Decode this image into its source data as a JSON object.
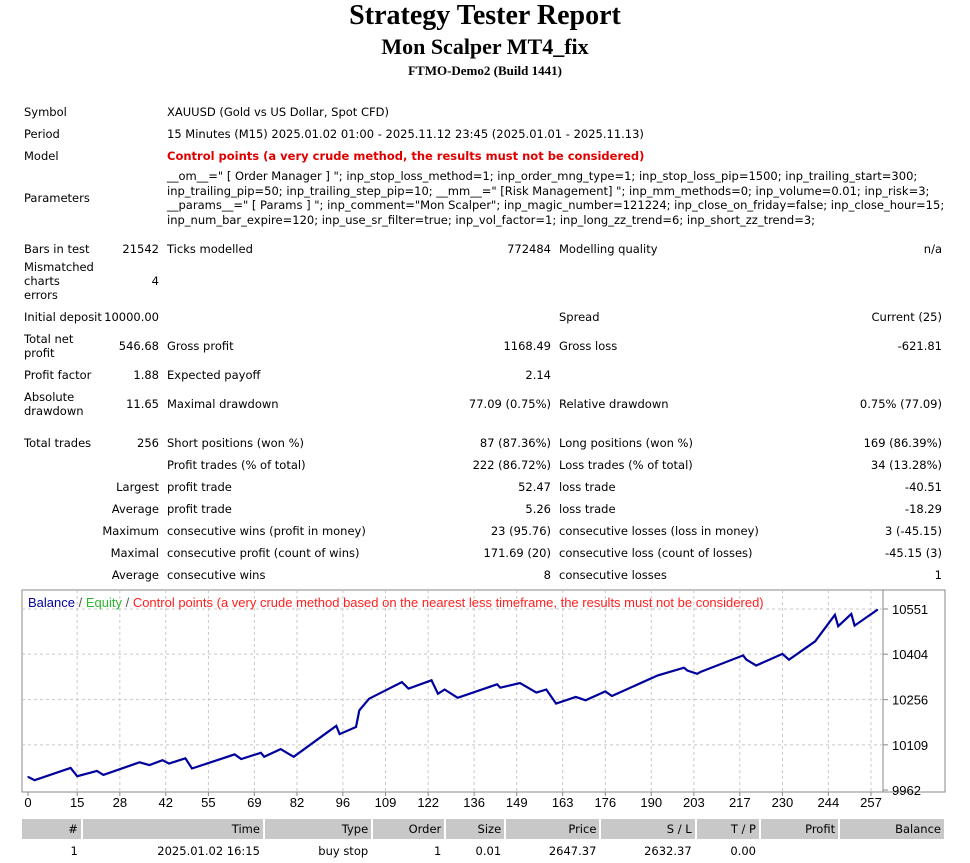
{
  "header": {
    "title": "Strategy Tester Report",
    "expert": "Mon Scalper MT4_fix",
    "server": "FTMO-Demo2 (Build 1441)"
  },
  "info": {
    "symbol_label": "Symbol",
    "symbol": "XAUUSD (Gold vs US Dollar, Spot CFD)",
    "period_label": "Period",
    "period": "15 Minutes (M15) 2025.01.02 01:00 - 2025.11.12 23:45 (2025.01.01 - 2025.11.13)",
    "model_label": "Model",
    "model": "Control points (a very crude method, the results must not be considered)",
    "params_label": "Parameters",
    "params": [
      "__om__=\" [ Order Manager ] \"; inp_stop_loss_method=1; inp_order_mng_type=1; inp_stop_loss_pip=1500; inp_trailing_start=300;",
      "inp_trailing_pip=50; inp_trailing_step_pip=10; __mm__=\" [Risk Management] \"; inp_mm_methods=0; inp_volume=0.01; inp_risk=3;",
      "__params__=\" [ Params ] \"; inp_comment=\"Mon Scalper\"; inp_magic_number=121224; inp_close_on_friday=false; inp_close_hour=15;",
      "inp_num_bar_expire=120; inp_use_sr_filter=true; inp_vol_factor=1; inp_long_zz_trend=6; inp_short_zz_trend=3;"
    ]
  },
  "stats": {
    "bars_label": "Bars in test",
    "bars": "21542",
    "ticks_label": "Ticks modelled",
    "ticks": "772484",
    "quality_label": "Modelling quality",
    "quality": "n/a",
    "mismatch_label": "Mismatched charts errors",
    "mismatch": "4",
    "deposit_label": "Initial deposit",
    "deposit": "10000.00",
    "spread_label": "Spread",
    "spread": "Current (25)",
    "net_label": "Total net profit",
    "net": "546.68",
    "gross_profit_label": "Gross profit",
    "gross_profit": "1168.49",
    "gross_loss_label": "Gross loss",
    "gross_loss": "-621.81",
    "pf_label": "Profit factor",
    "pf": "1.88",
    "payoff_label": "Expected payoff",
    "payoff": "2.14",
    "abs_dd_label": "Absolute drawdown",
    "abs_dd": "11.65",
    "max_dd_label": "Maximal drawdown",
    "max_dd": "77.09 (0.75%)",
    "rel_dd_label": "Relative drawdown",
    "rel_dd": "0.75% (77.09)",
    "trades_label": "Total trades",
    "trades": "256",
    "short_label": "Short positions (won %)",
    "short": "87 (87.36%)",
    "long_label": "Long positions (won %)",
    "long": "169 (86.39%)",
    "profit_trades_label": "Profit trades (% of total)",
    "profit_trades": "222 (86.72%)",
    "loss_trades_label": "Loss trades (% of total)",
    "loss_trades": "34 (13.28%)",
    "largest_label": "Largest",
    "largest_profit_label": "profit trade",
    "largest_profit": "52.47",
    "largest_loss_label": "loss trade",
    "largest_loss": "-40.51",
    "average_label": "Average",
    "avg_profit_label": "profit trade",
    "avg_profit": "5.26",
    "avg_loss_label": "loss trade",
    "avg_loss": "-18.29",
    "maximum_label": "Maximum",
    "max_wins_label": "consecutive wins (profit in money)",
    "max_wins": "23 (95.76)",
    "max_losses_label": "consecutive losses (loss in money)",
    "max_losses": "3 (-45.15)",
    "maximal_label": "Maximal",
    "maximal_profit_label": "consecutive profit (count of wins)",
    "maximal_profit": "171.69 (20)",
    "maximal_loss_label": "consecutive loss (count of losses)",
    "maximal_loss": "-45.15 (3)",
    "average2_label": "Average",
    "avg_wins_label": "consecutive wins",
    "avg_wins": "8",
    "avg_losses_label": "consecutive losses",
    "avg_losses": "1"
  },
  "chart_data": {
    "type": "line",
    "legend": {
      "balance": "Balance",
      "sep1": " / ",
      "equity": "Equity",
      "sep2": " / ",
      "note": "Control points (a very crude method based on the nearest less timeframe, the results must not be considered)"
    },
    "colors": {
      "balance": "#00009c",
      "equity": "#2eb82e",
      "note": "#ff2020",
      "grid": "#c8c8c8"
    },
    "xticks": [
      0,
      15,
      28,
      42,
      55,
      69,
      82,
      96,
      109,
      122,
      136,
      149,
      163,
      176,
      190,
      203,
      217,
      230,
      244,
      257
    ],
    "yticks": [
      9962,
      10109,
      10256,
      10404,
      10551
    ],
    "xlim": [
      0,
      257
    ],
    "ylim": [
      9962,
      10551
    ],
    "balance": [
      [
        0,
        10005
      ],
      [
        2,
        9994
      ],
      [
        13,
        10034
      ],
      [
        15,
        10007
      ],
      [
        21,
        10024
      ],
      [
        23,
        10011
      ],
      [
        34,
        10052
      ],
      [
        37,
        10043
      ],
      [
        41,
        10059
      ],
      [
        43,
        10048
      ],
      [
        48,
        10065
      ],
      [
        50,
        10032
      ],
      [
        63,
        10078
      ],
      [
        65,
        10063
      ],
      [
        71,
        10083
      ],
      [
        72,
        10070
      ],
      [
        77,
        10095
      ],
      [
        81,
        10070
      ],
      [
        90,
        10140
      ],
      [
        94,
        10171
      ],
      [
        95,
        10144
      ],
      [
        100,
        10167
      ],
      [
        101,
        10221
      ],
      [
        104,
        10259
      ],
      [
        114,
        10313
      ],
      [
        116,
        10292
      ],
      [
        123,
        10319
      ],
      [
        125,
        10275
      ],
      [
        127,
        10289
      ],
      [
        131,
        10262
      ],
      [
        143,
        10306
      ],
      [
        144,
        10295
      ],
      [
        150,
        10310
      ],
      [
        155,
        10279
      ],
      [
        158,
        10289
      ],
      [
        161,
        10243
      ],
      [
        167,
        10265
      ],
      [
        170,
        10254
      ],
      [
        176,
        10283
      ],
      [
        178,
        10268
      ],
      [
        192,
        10335
      ],
      [
        200,
        10360
      ],
      [
        201,
        10351
      ],
      [
        204,
        10340
      ],
      [
        205,
        10346
      ],
      [
        218,
        10400
      ],
      [
        219,
        10386
      ],
      [
        222,
        10367
      ],
      [
        230,
        10405
      ],
      [
        232,
        10386
      ],
      [
        240,
        10446
      ],
      [
        246,
        10532
      ],
      [
        247,
        10495
      ],
      [
        251,
        10535
      ],
      [
        252,
        10497
      ],
      [
        259,
        10549
      ]
    ]
  },
  "trades": {
    "headers": [
      "#",
      "Time",
      "Type",
      "Order",
      "Size",
      "Price",
      "S / L",
      "T / P",
      "Profit",
      "Balance"
    ],
    "rows": [
      [
        "1",
        "2025.01.02 16:15",
        "buy stop",
        "1",
        "0.01",
        "2647.37",
        "2632.37",
        "0.00",
        "",
        ""
      ]
    ]
  }
}
